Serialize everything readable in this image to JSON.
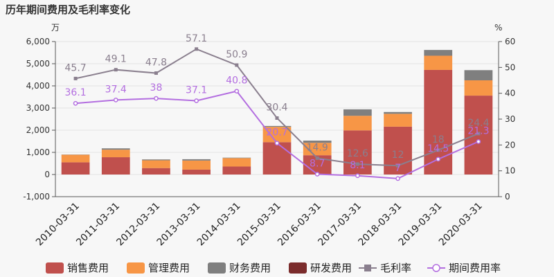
{
  "chart_data": {
    "type": "bar",
    "title": "历年期间费用及毛利率变化",
    "left_unit": "万",
    "right_unit": "%",
    "categories": [
      "2010-03-31",
      "2011-03-31",
      "2012-03-31",
      "2013-03-31",
      "2014-03-31",
      "2015-03-31",
      "2016-03-31",
      "2017-03-31",
      "2018-03-31",
      "2019-03-31",
      "2020-03-31"
    ],
    "ylim_left": [
      -1000,
      6000
    ],
    "yticks_left": [
      "6,000",
      "5,000",
      "4,000",
      "3,000",
      "2,000",
      "1,000",
      "0",
      "-1,000"
    ],
    "ylim_right": [
      0,
      60
    ],
    "yticks_right": [
      "60",
      "50",
      "40",
      "30",
      "20",
      "10",
      "0"
    ],
    "stacked_series": [
      {
        "name": "销售费用",
        "color": "#c0504d",
        "values": [
          550,
          780,
          290,
          220,
          360,
          1460,
          870,
          1990,
          2160,
          4720,
          3560
        ]
      },
      {
        "name": "管理费用",
        "color": "#f79646",
        "values": [
          340,
          340,
          350,
          410,
          380,
          690,
          560,
          660,
          580,
          640,
          690
        ]
      },
      {
        "name": "财务费用",
        "color": "#7f7f7f",
        "values": [
          10,
          60,
          40,
          60,
          20,
          40,
          100,
          290,
          80,
          260,
          460
        ]
      },
      {
        "name": "研发费用",
        "color": "#7b2c2c",
        "values": [
          0,
          0,
          0,
          0,
          0,
          0,
          0,
          0,
          0,
          0,
          0
        ]
      }
    ],
    "line_series": [
      {
        "name": "毛利率",
        "color": "#8a7f8e",
        "marker": "square",
        "values": [
          45.7,
          49.1,
          47.8,
          57.1,
          50.9,
          30.4,
          14.9,
          12.6,
          12,
          18,
          24.4
        ],
        "labels": [
          "45.7",
          "49.1",
          "47.8",
          "57.1",
          "50.9",
          "30.4",
          "14.9",
          "12.6",
          "12",
          "18",
          "24.4"
        ]
      },
      {
        "name": "期间费用率",
        "color": "#b36ee0",
        "marker": "circle",
        "values": [
          36.1,
          37.4,
          38,
          37.1,
          40.8,
          20.7,
          8.7,
          8.1,
          7,
          14.5,
          21.3
        ],
        "labels": [
          "36.1",
          "37.4",
          "38",
          "37.1",
          "40.8",
          "20.7",
          "8.7",
          "8.1",
          "7",
          "14.5",
          "21.3"
        ]
      }
    ],
    "legend_position": "bottom"
  }
}
